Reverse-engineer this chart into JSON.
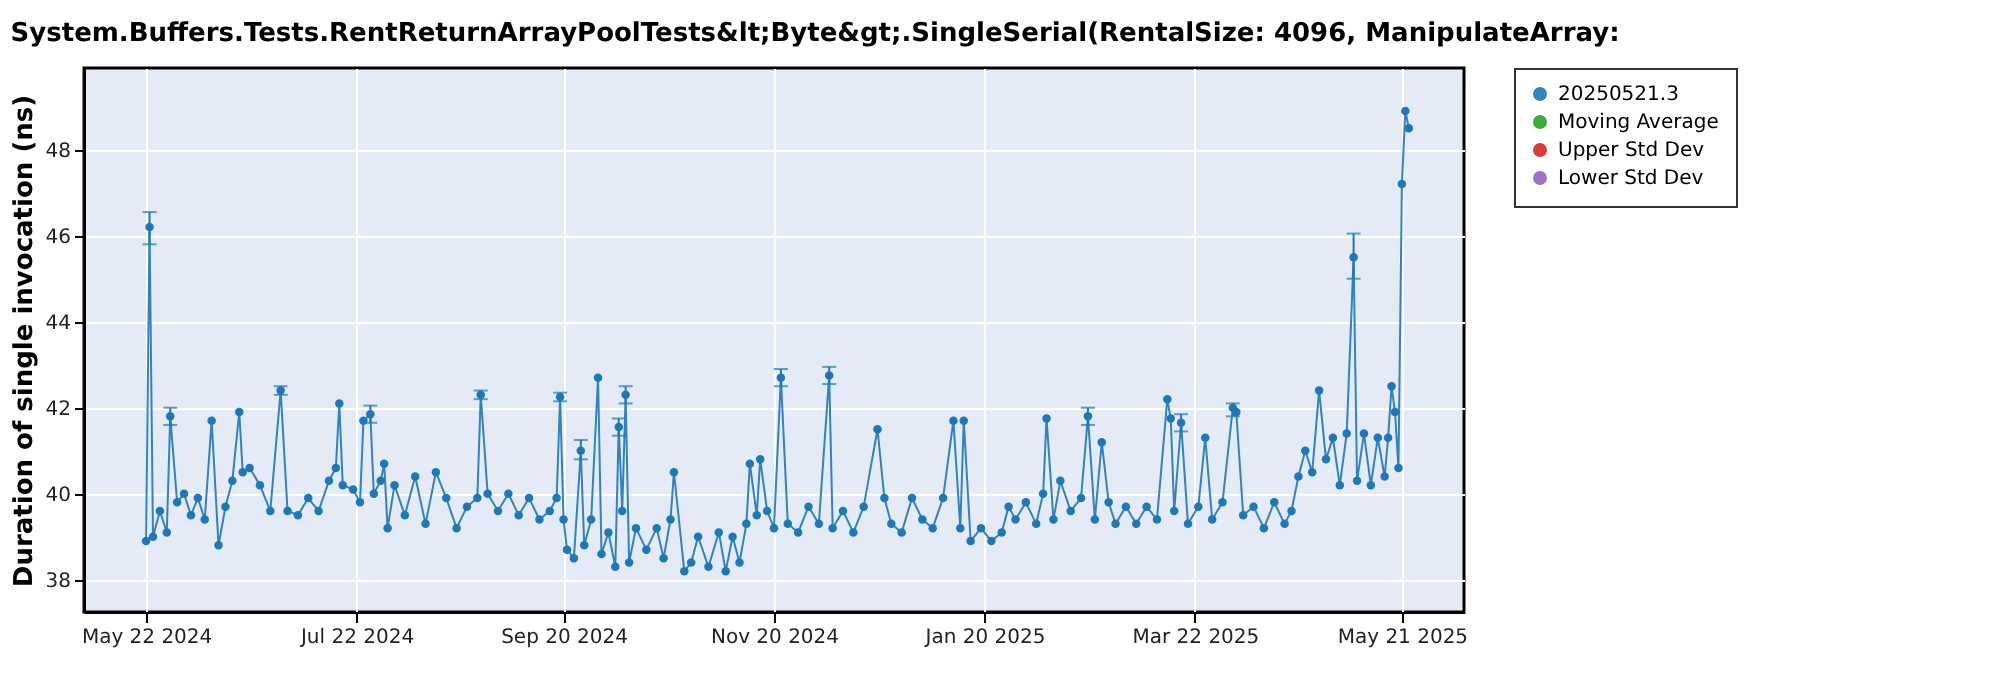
{
  "chart_data": {
    "type": "line",
    "title": "System.Buffers.Tests.RentReturnArrayPoolTests&lt;Byte&gt;.SingleSerial(RentalSize: 4096, ManipulateArray:",
    "ylabel": "Duration of single invocation (ns)",
    "xlim": [
      "2024-05-04",
      "2025-06-08"
    ],
    "xticks": [
      {
        "value": "2024-05-22",
        "label": "May 22 2024"
      },
      {
        "value": "2024-07-22",
        "label": "Jul 22 2024"
      },
      {
        "value": "2024-09-20",
        "label": "Sep 20 2024"
      },
      {
        "value": "2024-11-20",
        "label": "Nov 20 2024"
      },
      {
        "value": "2025-01-20",
        "label": "Jan 20 2025"
      },
      {
        "value": "2025-03-22",
        "label": "Mar 22 2025"
      },
      {
        "value": "2025-05-21",
        "label": "May 21 2025"
      }
    ],
    "ylim": [
      37.25,
      49.9
    ],
    "yticks": [
      38,
      40,
      42,
      44,
      46,
      48
    ],
    "grid": true,
    "legend": "right",
    "marker": "circle",
    "line_style": "solid",
    "x": [
      "2024-05-22",
      "2024-05-23",
      "2024-05-24",
      "2024-05-26",
      "2024-05-28",
      "2024-05-29",
      "2024-05-31",
      "2024-06-02",
      "2024-06-04",
      "2024-06-06",
      "2024-06-08",
      "2024-06-10",
      "2024-06-12",
      "2024-06-14",
      "2024-06-16",
      "2024-06-18",
      "2024-06-19",
      "2024-06-21",
      "2024-06-24",
      "2024-06-27",
      "2024-06-30",
      "2024-07-02",
      "2024-07-05",
      "2024-07-08",
      "2024-07-11",
      "2024-07-14",
      "2024-07-16",
      "2024-07-17",
      "2024-07-18",
      "2024-07-21",
      "2024-07-23",
      "2024-07-24",
      "2024-07-26",
      "2024-07-27",
      "2024-07-29",
      "2024-07-30",
      "2024-07-31",
      "2024-08-02",
      "2024-08-05",
      "2024-08-08",
      "2024-08-11",
      "2024-08-14",
      "2024-08-17",
      "2024-08-20",
      "2024-08-23",
      "2024-08-26",
      "2024-08-27",
      "2024-08-29",
      "2024-09-01",
      "2024-09-04",
      "2024-09-07",
      "2024-09-10",
      "2024-09-13",
      "2024-09-16",
      "2024-09-18",
      "2024-09-19",
      "2024-09-20",
      "2024-09-21",
      "2024-09-23",
      "2024-09-25",
      "2024-09-26",
      "2024-09-28",
      "2024-09-30",
      "2024-10-01",
      "2024-10-03",
      "2024-10-05",
      "2024-10-06",
      "2024-10-07",
      "2024-10-08",
      "2024-10-09",
      "2024-10-11",
      "2024-10-14",
      "2024-10-17",
      "2024-10-19",
      "2024-10-21",
      "2024-10-22",
      "2024-10-25",
      "2024-10-27",
      "2024-10-29",
      "2024-11-01",
      "2024-11-04",
      "2024-11-06",
      "2024-11-08",
      "2024-11-10",
      "2024-11-12",
      "2024-11-13",
      "2024-11-15",
      "2024-11-16",
      "2024-11-18",
      "2024-11-20",
      "2024-11-22",
      "2024-11-24",
      "2024-11-27",
      "2024-11-30",
      "2024-12-03",
      "2024-12-06",
      "2024-12-07",
      "2024-12-10",
      "2024-12-13",
      "2024-12-16",
      "2024-12-20",
      "2024-12-22",
      "2024-12-24",
      "2024-12-27",
      "2024-12-30",
      "2025-01-02",
      "2025-01-05",
      "2025-01-08",
      "2025-01-11",
      "2025-01-13",
      "2025-01-14",
      "2025-01-16",
      "2025-01-19",
      "2025-01-22",
      "2025-01-25",
      "2025-01-27",
      "2025-01-29",
      "2025-02-01",
      "2025-02-04",
      "2025-02-06",
      "2025-02-07",
      "2025-02-09",
      "2025-02-11",
      "2025-02-14",
      "2025-02-17",
      "2025-02-19",
      "2025-02-21",
      "2025-02-23",
      "2025-02-25",
      "2025-02-27",
      "2025-03-02",
      "2025-03-05",
      "2025-03-08",
      "2025-03-11",
      "2025-03-14",
      "2025-03-15",
      "2025-03-16",
      "2025-03-18",
      "2025-03-20",
      "2025-03-23",
      "2025-03-25",
      "2025-03-27",
      "2025-03-30",
      "2025-04-02",
      "2025-04-03",
      "2025-04-05",
      "2025-04-08",
      "2025-04-11",
      "2025-04-14",
      "2025-04-17",
      "2025-04-19",
      "2025-04-21",
      "2025-04-23",
      "2025-04-25",
      "2025-04-27",
      "2025-04-29",
      "2025-05-01",
      "2025-05-03",
      "2025-05-05",
      "2025-05-07",
      "2025-05-08",
      "2025-05-10",
      "2025-05-12",
      "2025-05-14",
      "2025-05-16",
      "2025-05-17",
      "2025-05-18",
      "2025-05-19",
      "2025-05-20",
      "2025-05-21",
      "2025-05-22",
      "2025-05-23"
    ],
    "series": [
      {
        "name": "20250521.3",
        "color": "#1f77b4",
        "values": [
          38.9,
          46.2,
          39.0,
          39.6,
          39.1,
          41.8,
          39.8,
          40.0,
          39.5,
          39.9,
          39.4,
          41.7,
          38.8,
          39.7,
          40.3,
          41.9,
          40.5,
          40.6,
          40.2,
          39.6,
          42.4,
          39.6,
          39.5,
          39.9,
          39.6,
          40.3,
          40.6,
          42.1,
          40.2,
          40.1,
          39.8,
          41.7,
          41.85,
          40.0,
          40.3,
          40.7,
          39.2,
          40.2,
          39.5,
          40.4,
          39.3,
          40.5,
          39.9,
          39.2,
          39.7,
          39.9,
          42.3,
          40.0,
          39.6,
          40.0,
          39.5,
          39.9,
          39.4,
          39.6,
          39.9,
          42.25,
          39.4,
          38.7,
          38.5,
          41.0,
          38.8,
          39.4,
          42.7,
          38.6,
          39.1,
          38.3,
          41.55,
          39.6,
          42.3,
          38.4,
          39.2,
          38.7,
          39.2,
          38.5,
          39.4,
          40.5,
          38.2,
          38.4,
          39.0,
          38.3,
          39.1,
          38.2,
          39.0,
          38.4,
          39.3,
          40.7,
          39.5,
          40.8,
          39.6,
          39.2,
          42.7,
          39.3,
          39.1,
          39.7,
          39.3,
          42.75,
          39.2,
          39.6,
          39.1,
          39.7,
          41.5,
          39.9,
          39.3,
          39.1,
          39.9,
          39.4,
          39.2,
          39.9,
          41.7,
          39.2,
          41.7,
          38.9,
          39.2,
          38.9,
          39.1,
          39.7,
          39.4,
          39.8,
          39.3,
          40.0,
          41.75,
          39.4,
          40.3,
          39.6,
          39.9,
          41.8,
          39.4,
          41.2,
          39.8,
          39.3,
          39.7,
          39.3,
          39.7,
          39.4,
          42.2,
          41.75,
          39.6,
          41.65,
          39.3,
          39.7,
          41.3,
          39.4,
          39.8,
          42.0,
          41.9,
          39.5,
          39.7,
          39.2,
          39.8,
          39.3,
          39.6,
          40.4,
          41.0,
          40.5,
          42.4,
          40.8,
          41.3,
          40.2,
          41.4,
          45.5,
          40.3,
          41.4,
          40.2,
          41.3,
          40.4,
          41.3,
          42.5,
          41.9,
          40.6,
          47.2,
          48.9,
          48.5
        ],
        "errors": [
          null,
          [
            45.8,
            46.55
          ],
          null,
          null,
          null,
          0.2,
          null,
          null,
          null,
          null,
          null,
          null,
          null,
          null,
          null,
          null,
          null,
          null,
          null,
          null,
          0.1,
          null,
          null,
          null,
          null,
          null,
          null,
          null,
          null,
          null,
          null,
          null,
          0.2,
          null,
          null,
          null,
          null,
          null,
          null,
          null,
          null,
          null,
          null,
          null,
          null,
          null,
          0.1,
          null,
          null,
          null,
          null,
          null,
          null,
          null,
          null,
          0.1,
          null,
          null,
          null,
          [
            40.8,
            41.25
          ],
          null,
          null,
          null,
          null,
          null,
          null,
          0.2,
          null,
          0.2,
          null,
          null,
          null,
          null,
          null,
          null,
          null,
          null,
          null,
          null,
          null,
          null,
          null,
          null,
          null,
          null,
          null,
          null,
          null,
          null,
          null,
          0.2,
          null,
          null,
          null,
          null,
          0.2,
          null,
          null,
          null,
          null,
          null,
          null,
          null,
          null,
          null,
          null,
          null,
          null,
          null,
          null,
          null,
          null,
          null,
          null,
          null,
          null,
          null,
          null,
          null,
          null,
          null,
          null,
          null,
          null,
          null,
          0.2,
          null,
          null,
          null,
          null,
          null,
          null,
          null,
          null,
          null,
          null,
          null,
          0.2,
          null,
          null,
          null,
          null,
          null,
          [
            41.8,
            42.1
          ],
          null,
          null,
          null,
          null,
          null,
          null,
          null,
          null,
          null,
          null,
          null,
          null,
          null,
          null,
          null,
          [
            45.0,
            46.05
          ],
          null,
          null,
          null,
          null,
          null,
          null,
          null,
          null,
          null,
          null,
          null,
          null
        ]
      },
      {
        "name": "Moving Average",
        "color": "#2ca02c",
        "values": [
          null,
          null,
          null,
          null,
          null,
          null,
          null,
          null,
          null,
          null,
          null,
          null,
          null,
          null,
          null,
          null,
          null,
          null,
          null,
          null,
          null,
          null,
          null,
          null,
          null,
          null,
          null,
          null,
          null,
          null,
          null,
          null,
          null,
          null,
          null,
          null,
          null,
          null,
          null,
          null,
          null,
          null,
          null,
          null,
          null,
          null,
          null,
          null,
          null,
          null,
          null,
          null,
          null,
          null,
          null,
          null,
          null,
          null,
          null,
          null,
          null,
          null,
          null,
          null,
          null,
          null,
          null,
          null,
          null,
          null,
          null,
          null,
          null,
          null,
          null,
          null,
          null,
          null,
          null,
          null,
          null,
          null,
          null,
          null,
          null,
          null,
          null,
          null,
          null,
          null,
          null,
          null,
          null,
          null,
          null,
          null,
          null,
          null,
          null,
          null,
          null,
          null,
          null,
          null,
          null,
          null,
          null,
          null,
          null,
          null,
          null,
          null,
          null,
          null,
          null,
          null,
          null,
          null,
          null,
          null,
          null,
          null,
          null,
          null,
          null,
          null,
          null,
          null,
          null,
          null,
          null,
          null,
          null,
          null,
          null,
          null,
          null,
          null,
          null,
          null,
          null,
          null,
          null,
          null,
          null,
          null,
          null,
          null,
          null,
          null,
          null,
          null,
          null,
          null,
          null,
          null,
          null,
          null,
          null,
          null,
          null,
          null,
          null,
          null,
          null,
          null,
          null,
          null,
          null,
          null,
          null,
          null
        ]
      },
      {
        "name": "Upper Std Dev",
        "color": "#d62728",
        "values": [
          null,
          null,
          null,
          null,
          null,
          null,
          null,
          null,
          null,
          null,
          null,
          null,
          null,
          null,
          null,
          null,
          null,
          null,
          null,
          null,
          null,
          null,
          null,
          null,
          null,
          null,
          null,
          null,
          null,
          null,
          null,
          null,
          null,
          null,
          null,
          null,
          null,
          null,
          null,
          null,
          null,
          null,
          null,
          null,
          null,
          null,
          null,
          null,
          null,
          null,
          null,
          null,
          null,
          null,
          null,
          null,
          null,
          null,
          null,
          null,
          null,
          null,
          null,
          null,
          null,
          null,
          null,
          null,
          null,
          null,
          null,
          null,
          null,
          null,
          null,
          null,
          null,
          null,
          null,
          null,
          null,
          null,
          null,
          null,
          null,
          null,
          null,
          null,
          null,
          null,
          null,
          null,
          null,
          null,
          null,
          null,
          null,
          null,
          null,
          null,
          null,
          null,
          null,
          null,
          null,
          null,
          null,
          null,
          null,
          null,
          null,
          null,
          null,
          null,
          null,
          null,
          null,
          null,
          null,
          null,
          null,
          null,
          null,
          null,
          null,
          null,
          null,
          null,
          null,
          null,
          null,
          null,
          null,
          null,
          null,
          null,
          null,
          null,
          null,
          null,
          null,
          null,
          null,
          null,
          null,
          null,
          null,
          null,
          null,
          null,
          null,
          null,
          null,
          null,
          null,
          null,
          null,
          null,
          null,
          null,
          null,
          null,
          null,
          null,
          null,
          null,
          null,
          null,
          null,
          null,
          null,
          null
        ]
      },
      {
        "name": "Lower Std Dev",
        "color": "#9467bd",
        "values": [
          null,
          null,
          null,
          null,
          null,
          null,
          null,
          null,
          null,
          null,
          null,
          null,
          null,
          null,
          null,
          null,
          null,
          null,
          null,
          null,
          null,
          null,
          null,
          null,
          null,
          null,
          null,
          null,
          null,
          null,
          null,
          null,
          null,
          null,
          null,
          null,
          null,
          null,
          null,
          null,
          null,
          null,
          null,
          null,
          null,
          null,
          null,
          null,
          null,
          null,
          null,
          null,
          null,
          null,
          null,
          null,
          null,
          null,
          null,
          null,
          null,
          null,
          null,
          null,
          null,
          null,
          null,
          null,
          null,
          null,
          null,
          null,
          null,
          null,
          null,
          null,
          null,
          null,
          null,
          null,
          null,
          null,
          null,
          null,
          null,
          null,
          null,
          null,
          null,
          null,
          null,
          null,
          null,
          null,
          null,
          null,
          null,
          null,
          null,
          null,
          null,
          null,
          null,
          null,
          null,
          null,
          null,
          null,
          null,
          null,
          null,
          null,
          null,
          null,
          null,
          null,
          null,
          null,
          null,
          null,
          null,
          null,
          null,
          null,
          null,
          null,
          null,
          null,
          null,
          null,
          null,
          null,
          null,
          null,
          null,
          null,
          null,
          null,
          null,
          null,
          null,
          null,
          null,
          null,
          null,
          null,
          null,
          null,
          null,
          null,
          null,
          null,
          null,
          null,
          null,
          null,
          null,
          null,
          null,
          null,
          null,
          null,
          null,
          null,
          null,
          null,
          null,
          null,
          null,
          null,
          null,
          null
        ]
      }
    ]
  }
}
